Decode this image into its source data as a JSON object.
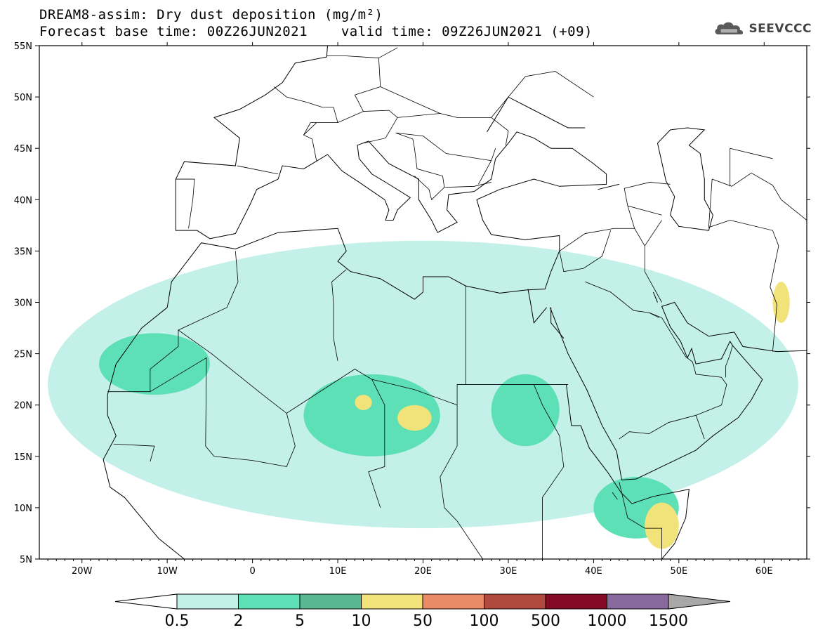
{
  "title": {
    "line1": "DREAM8-assim: Dry dust deposition (mg/m²)",
    "line2_base": "Forecast base time: 00Z26JUN2021",
    "line2_valid": "valid time: 09Z26JUN2021 (+09)"
  },
  "logo": {
    "text": "SEEVCCC",
    "icon": "cloud-logo-icon"
  },
  "map": {
    "projection": "lat-lon",
    "lon_range": [
      -25,
      65
    ],
    "lat_range": [
      5,
      55
    ],
    "lat_ticks": [
      {
        "value": 55,
        "label": "55N"
      },
      {
        "value": 50,
        "label": "50N"
      },
      {
        "value": 45,
        "label": "45N"
      },
      {
        "value": 40,
        "label": "40N"
      },
      {
        "value": 35,
        "label": "35N"
      },
      {
        "value": 30,
        "label": "30N"
      },
      {
        "value": 25,
        "label": "25N"
      },
      {
        "value": 20,
        "label": "20N"
      },
      {
        "value": 15,
        "label": "15N"
      },
      {
        "value": 10,
        "label": "10N"
      },
      {
        "value": 5,
        "label": "5N"
      }
    ],
    "lon_ticks": [
      {
        "value": -20,
        "label": "20W"
      },
      {
        "value": -10,
        "label": "10W"
      },
      {
        "value": 0,
        "label": "0"
      },
      {
        "value": 10,
        "label": "10E"
      },
      {
        "value": 20,
        "label": "20E"
      },
      {
        "value": 30,
        "label": "30E"
      },
      {
        "value": 40,
        "label": "40E"
      },
      {
        "value": 50,
        "label": "50E"
      },
      {
        "value": 60,
        "label": "60E"
      }
    ]
  },
  "colorbar": {
    "thresholds": [
      "0.5",
      "2",
      "5",
      "10",
      "50",
      "100",
      "500",
      "1000",
      "1500"
    ],
    "colors": [
      "#c3f0e8",
      "#5ee0b6",
      "#59b890",
      "#f2e27a",
      "#ea8a66",
      "#b04a3e",
      "#850a26",
      "#8a6a9e"
    ],
    "under_color": "#ffffff",
    "over_color": "#a8a8a8"
  },
  "dust_regions": [
    {
      "level": 0,
      "lon": [
        -24,
        64
      ],
      "lat": [
        8,
        36
      ],
      "note": "broad low band"
    },
    {
      "level": 1,
      "lon": [
        -18,
        -5
      ],
      "lat": [
        21,
        27
      ]
    },
    {
      "level": 1,
      "lon": [
        6,
        22
      ],
      "lat": [
        15,
        23
      ]
    },
    {
      "level": 1,
      "lon": [
        28,
        36
      ],
      "lat": [
        16,
        23
      ]
    },
    {
      "level": 1,
      "lon": [
        40,
        50
      ],
      "lat": [
        7,
        13
      ]
    },
    {
      "level": 3,
      "lon": [
        17,
        21
      ],
      "lat": [
        17.5,
        20
      ]
    },
    {
      "level": 3,
      "lon": [
        12,
        14
      ],
      "lat": [
        19.5,
        21
      ]
    },
    {
      "level": 3,
      "lon": [
        46,
        50
      ],
      "lat": [
        6,
        10.5
      ]
    },
    {
      "level": 3,
      "lon": [
        61,
        63
      ],
      "lat": [
        28,
        32
      ]
    }
  ]
}
